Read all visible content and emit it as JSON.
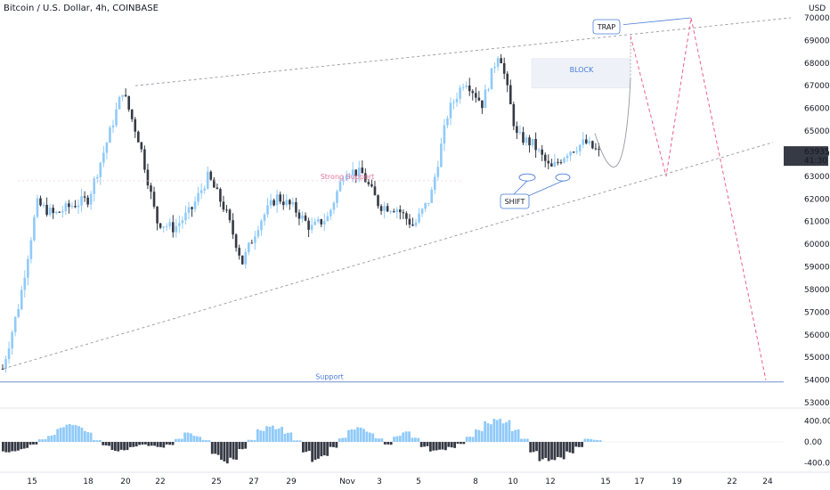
{
  "header": {
    "title": "Bitcoin / U.S. Dollar, 4h, COINBASE",
    "currency": "USD"
  },
  "chart_data": [
    {
      "type": "candlestick",
      "title": "Bitcoin / U.S. Dollar, 4h, COINBASE",
      "y_axis_unit": "USD",
      "ylim": [
        53000,
        70500
      ],
      "x_tick_labels": [
        "15",
        "18",
        "20",
        "22",
        "25",
        "27",
        "29",
        "Nov",
        "3",
        "5",
        "8",
        "10",
        "12",
        "15",
        "17",
        "19",
        "22",
        "24"
      ],
      "y_tick_labels": [
        "70000.00",
        "69000.00",
        "68000.00",
        "67000.00",
        "66000.00",
        "65000.00",
        "64000.00",
        "63000.00",
        "62000.00",
        "61000.00",
        "60000.00",
        "59000.00",
        "58000.00",
        "57000.00",
        "56000.00",
        "55000.00",
        "54000.00",
        "53000.00"
      ],
      "last_price": "63935.17",
      "countdown": "41:30",
      "price_path": [
        {
          "x": "14 Oct",
          "y": 54500
        },
        {
          "x": "15 Oct",
          "y": 57500
        },
        {
          "x": "16 Oct",
          "y": 61800
        },
        {
          "x": "17 Oct",
          "y": 61300
        },
        {
          "x": "18 Oct",
          "y": 61700
        },
        {
          "x": "19 Oct",
          "y": 62000
        },
        {
          "x": "20 Oct",
          "y": 64300
        },
        {
          "x": "20 Oct",
          "y": 66800
        },
        {
          "x": "21 Oct",
          "y": 64500
        },
        {
          "x": "22 Oct",
          "y": 61000
        },
        {
          "x": "23 Oct",
          "y": 60700
        },
        {
          "x": "24 Oct",
          "y": 61500
        },
        {
          "x": "25 Oct",
          "y": 63000
        },
        {
          "x": "26 Oct",
          "y": 61500
        },
        {
          "x": "27 Oct",
          "y": 59200
        },
        {
          "x": "28 Oct",
          "y": 61000
        },
        {
          "x": "29 Oct",
          "y": 62100
        },
        {
          "x": "30 Oct",
          "y": 61600
        },
        {
          "x": "31 Oct",
          "y": 60700
        },
        {
          "x": "1 Nov",
          "y": 61200
        },
        {
          "x": "2 Nov",
          "y": 63300
        },
        {
          "x": "3 Nov",
          "y": 63100
        },
        {
          "x": "4 Nov",
          "y": 61700
        },
        {
          "x": "5 Nov",
          "y": 61600
        },
        {
          "x": "6 Nov",
          "y": 60800
        },
        {
          "x": "7 Nov",
          "y": 62100
        },
        {
          "x": "8 Nov",
          "y": 65800
        },
        {
          "x": "9 Nov",
          "y": 67300
        },
        {
          "x": "10 Nov",
          "y": 66200
        },
        {
          "x": "10 Nov",
          "y": 68600
        },
        {
          "x": "11 Nov",
          "y": 64800
        },
        {
          "x": "12 Nov",
          "y": 64400
        },
        {
          "x": "12 Nov",
          "y": 63300
        },
        {
          "x": "13 Nov",
          "y": 64100
        },
        {
          "x": "14 Nov",
          "y": 64500
        },
        {
          "x": "15 Nov",
          "y": 63935
        }
      ],
      "annotations": {
        "labels": [
          "BLOCK",
          "TRAP",
          "SHIFT",
          "Strong Support",
          "Support"
        ],
        "support_level": 54000
      },
      "grid": false
    },
    {
      "type": "bar",
      "title": "",
      "y_tick_labels": [
        "400.00",
        "0.00",
        "-400.00"
      ],
      "ylim": [
        -560,
        560
      ],
      "colors": {
        "positive": "#90caf9",
        "negative": "#363a45"
      },
      "values": [
        -200,
        -180,
        -140,
        -60,
        60,
        140,
        280,
        340,
        320,
        220,
        40,
        -80,
        -180,
        -160,
        -100,
        -60,
        -90,
        -120,
        -60,
        60,
        180,
        120,
        40,
        -280,
        -420,
        -340,
        -140,
        40,
        260,
        360,
        300,
        180,
        30,
        -200,
        -400,
        -320,
        -120,
        80,
        240,
        280,
        200,
        80,
        -60,
        120,
        200,
        80,
        -100,
        -200,
        -180,
        -120,
        -40,
        100,
        240,
        420,
        520,
        440,
        240,
        60,
        -200,
        -380,
        -420,
        -360,
        -220,
        -100,
        60,
        40
      ]
    }
  ],
  "colors": {
    "up": "#90caf9",
    "down": "#363a45",
    "trendline": "#9598a1",
    "projection": "#ef5f8c",
    "annotation_blue": "#4a7bd8",
    "support_line": "#8fa6dc",
    "block_fill": "#eef2f8"
  }
}
